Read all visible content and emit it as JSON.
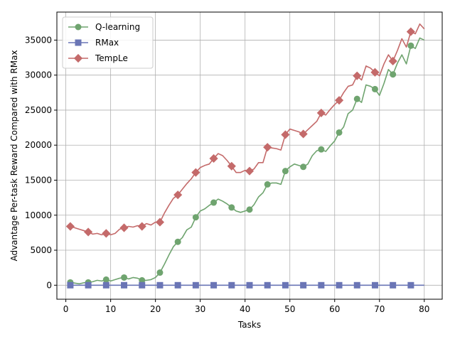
{
  "chart_data": {
    "type": "line",
    "title": "",
    "xlabel": "Tasks",
    "ylabel": "Advantage Per-task Reward Compared with RMax",
    "xlim": [
      -2,
      84
    ],
    "ylim": [
      -2000,
      39000
    ],
    "xticks": [
      0,
      10,
      20,
      30,
      40,
      50,
      60,
      70,
      80
    ],
    "yticks": [
      0,
      5000,
      10000,
      15000,
      20000,
      25000,
      30000,
      35000
    ],
    "grid": true,
    "legend_position": "top-left",
    "series": [
      {
        "name": "Q-learning",
        "color": "#6fa46f",
        "marker": "circle",
        "marker_every": 4,
        "x": [
          1,
          2,
          3,
          4,
          5,
          6,
          7,
          8,
          9,
          10,
          11,
          12,
          13,
          14,
          15,
          16,
          17,
          18,
          19,
          20,
          21,
          22,
          23,
          24,
          25,
          26,
          27,
          28,
          29,
          30,
          31,
          32,
          33,
          34,
          35,
          36,
          37,
          38,
          39,
          40,
          41,
          42,
          43,
          44,
          45,
          46,
          47,
          48,
          49,
          50,
          51,
          52,
          53,
          54,
          55,
          56,
          57,
          58,
          59,
          60,
          61,
          62,
          63,
          64,
          65,
          66,
          67,
          68,
          69,
          70,
          71,
          72,
          73,
          74,
          75,
          76,
          77,
          78,
          79,
          80
        ],
        "values": [
          400,
          300,
          200,
          350,
          400,
          500,
          700,
          600,
          800,
          600,
          800,
          1000,
          1100,
          900,
          1100,
          1000,
          700,
          700,
          800,
          1100,
          1800,
          3000,
          4300,
          5500,
          6200,
          6800,
          7900,
          8300,
          9700,
          10600,
          10900,
          11400,
          11800,
          12300,
          12000,
          11600,
          11100,
          10600,
          10400,
          10600,
          10800,
          11500,
          12600,
          13200,
          14400,
          14600,
          14600,
          14400,
          16300,
          16900,
          17300,
          17100,
          16900,
          17300,
          18500,
          19200,
          19400,
          19100,
          19900,
          20600,
          21800,
          22600,
          24500,
          25000,
          26600,
          26100,
          28600,
          28400,
          28000,
          27100,
          28800,
          30800,
          30100,
          31700,
          32900,
          31600,
          34200,
          33800,
          35300,
          35000
        ]
      },
      {
        "name": "RMax",
        "color": "#6a75b5",
        "marker": "square",
        "marker_every": 4,
        "x": [
          1,
          80
        ],
        "values": [
          0,
          0
        ]
      },
      {
        "name": "TempLe",
        "color": "#c46a6a",
        "marker": "diamond",
        "marker_every": 4,
        "x": [
          1,
          2,
          3,
          4,
          5,
          6,
          7,
          8,
          9,
          10,
          11,
          12,
          13,
          14,
          15,
          16,
          17,
          18,
          19,
          20,
          21,
          22,
          23,
          24,
          25,
          26,
          27,
          28,
          29,
          30,
          31,
          32,
          33,
          34,
          35,
          36,
          37,
          38,
          39,
          40,
          41,
          42,
          43,
          44,
          45,
          46,
          47,
          48,
          49,
          50,
          51,
          52,
          53,
          54,
          55,
          56,
          57,
          58,
          59,
          60,
          61,
          62,
          63,
          64,
          65,
          66,
          67,
          68,
          69,
          70,
          71,
          72,
          73,
          74,
          75,
          76,
          77,
          78,
          79,
          80
        ],
        "values": [
          8400,
          8200,
          8000,
          7800,
          7600,
          7300,
          7400,
          7200,
          7400,
          7200,
          7400,
          8000,
          8200,
          8400,
          8300,
          8500,
          8400,
          8800,
          8600,
          9000,
          9000,
          10300,
          11400,
          12400,
          12900,
          13700,
          14500,
          15200,
          16100,
          16800,
          17100,
          17300,
          18100,
          18800,
          18500,
          17800,
          17000,
          16100,
          16100,
          16400,
          16300,
          16600,
          17500,
          17500,
          19700,
          19600,
          19500,
          19300,
          21500,
          22300,
          22100,
          21900,
          21600,
          22200,
          22800,
          23400,
          24600,
          24300,
          25100,
          25800,
          26400,
          27500,
          28400,
          28600,
          29900,
          29300,
          31300,
          31000,
          30400,
          29900,
          31600,
          32900,
          32000,
          33500,
          35200,
          34000,
          36200,
          35900,
          37300,
          36600
        ]
      }
    ]
  }
}
